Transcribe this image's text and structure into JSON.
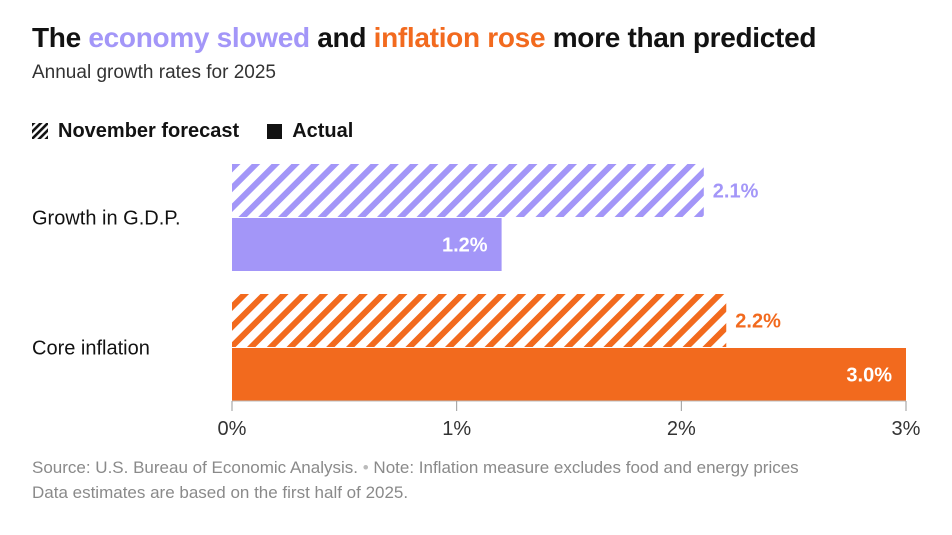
{
  "title": {
    "part1": "The ",
    "highlight1": "economy slowed",
    "part2": " and ",
    "highlight2": "inflation rose",
    "part3": " more than predicted"
  },
  "colors": {
    "gdp": "#a396f8",
    "inflation": "#f26a1e",
    "text": "#121212",
    "muted": "#8a8a8a",
    "axis": "#bbbbbb"
  },
  "legend": {
    "forecast_label": "November forecast",
    "actual_label": "Actual"
  },
  "source": {
    "line1_a": "Source: U.S. Bureau of Economic Analysis.",
    "line1_sep": "•",
    "line1_b": "Note: Inflation measure excludes food and energy prices",
    "line2": "Data estimates are based on the first half of 2025."
  },
  "chart_data": {
    "type": "bar",
    "orientation": "horizontal",
    "title": "The economy slowed and inflation rose more than predicted",
    "subtitle": "Annual growth rates for 2025",
    "categories": [
      "Growth in G.D.P.",
      "Core inflation"
    ],
    "series": [
      {
        "name": "November forecast",
        "values": [
          2.1,
          2.2
        ],
        "labels": [
          "2.1%",
          "2.2%"
        ],
        "pattern": "hatched"
      },
      {
        "name": "Actual",
        "values": [
          1.2,
          3.0
        ],
        "labels": [
          "1.2%",
          "3.0%"
        ],
        "pattern": "solid"
      }
    ],
    "xlim": [
      0,
      3
    ],
    "xticks": [
      0,
      1,
      2,
      3
    ],
    "xtick_labels": [
      "0%",
      "1%",
      "2%",
      "3%"
    ],
    "xlabel": "",
    "ylabel": "",
    "legend_position": "top-left",
    "grid": false
  }
}
